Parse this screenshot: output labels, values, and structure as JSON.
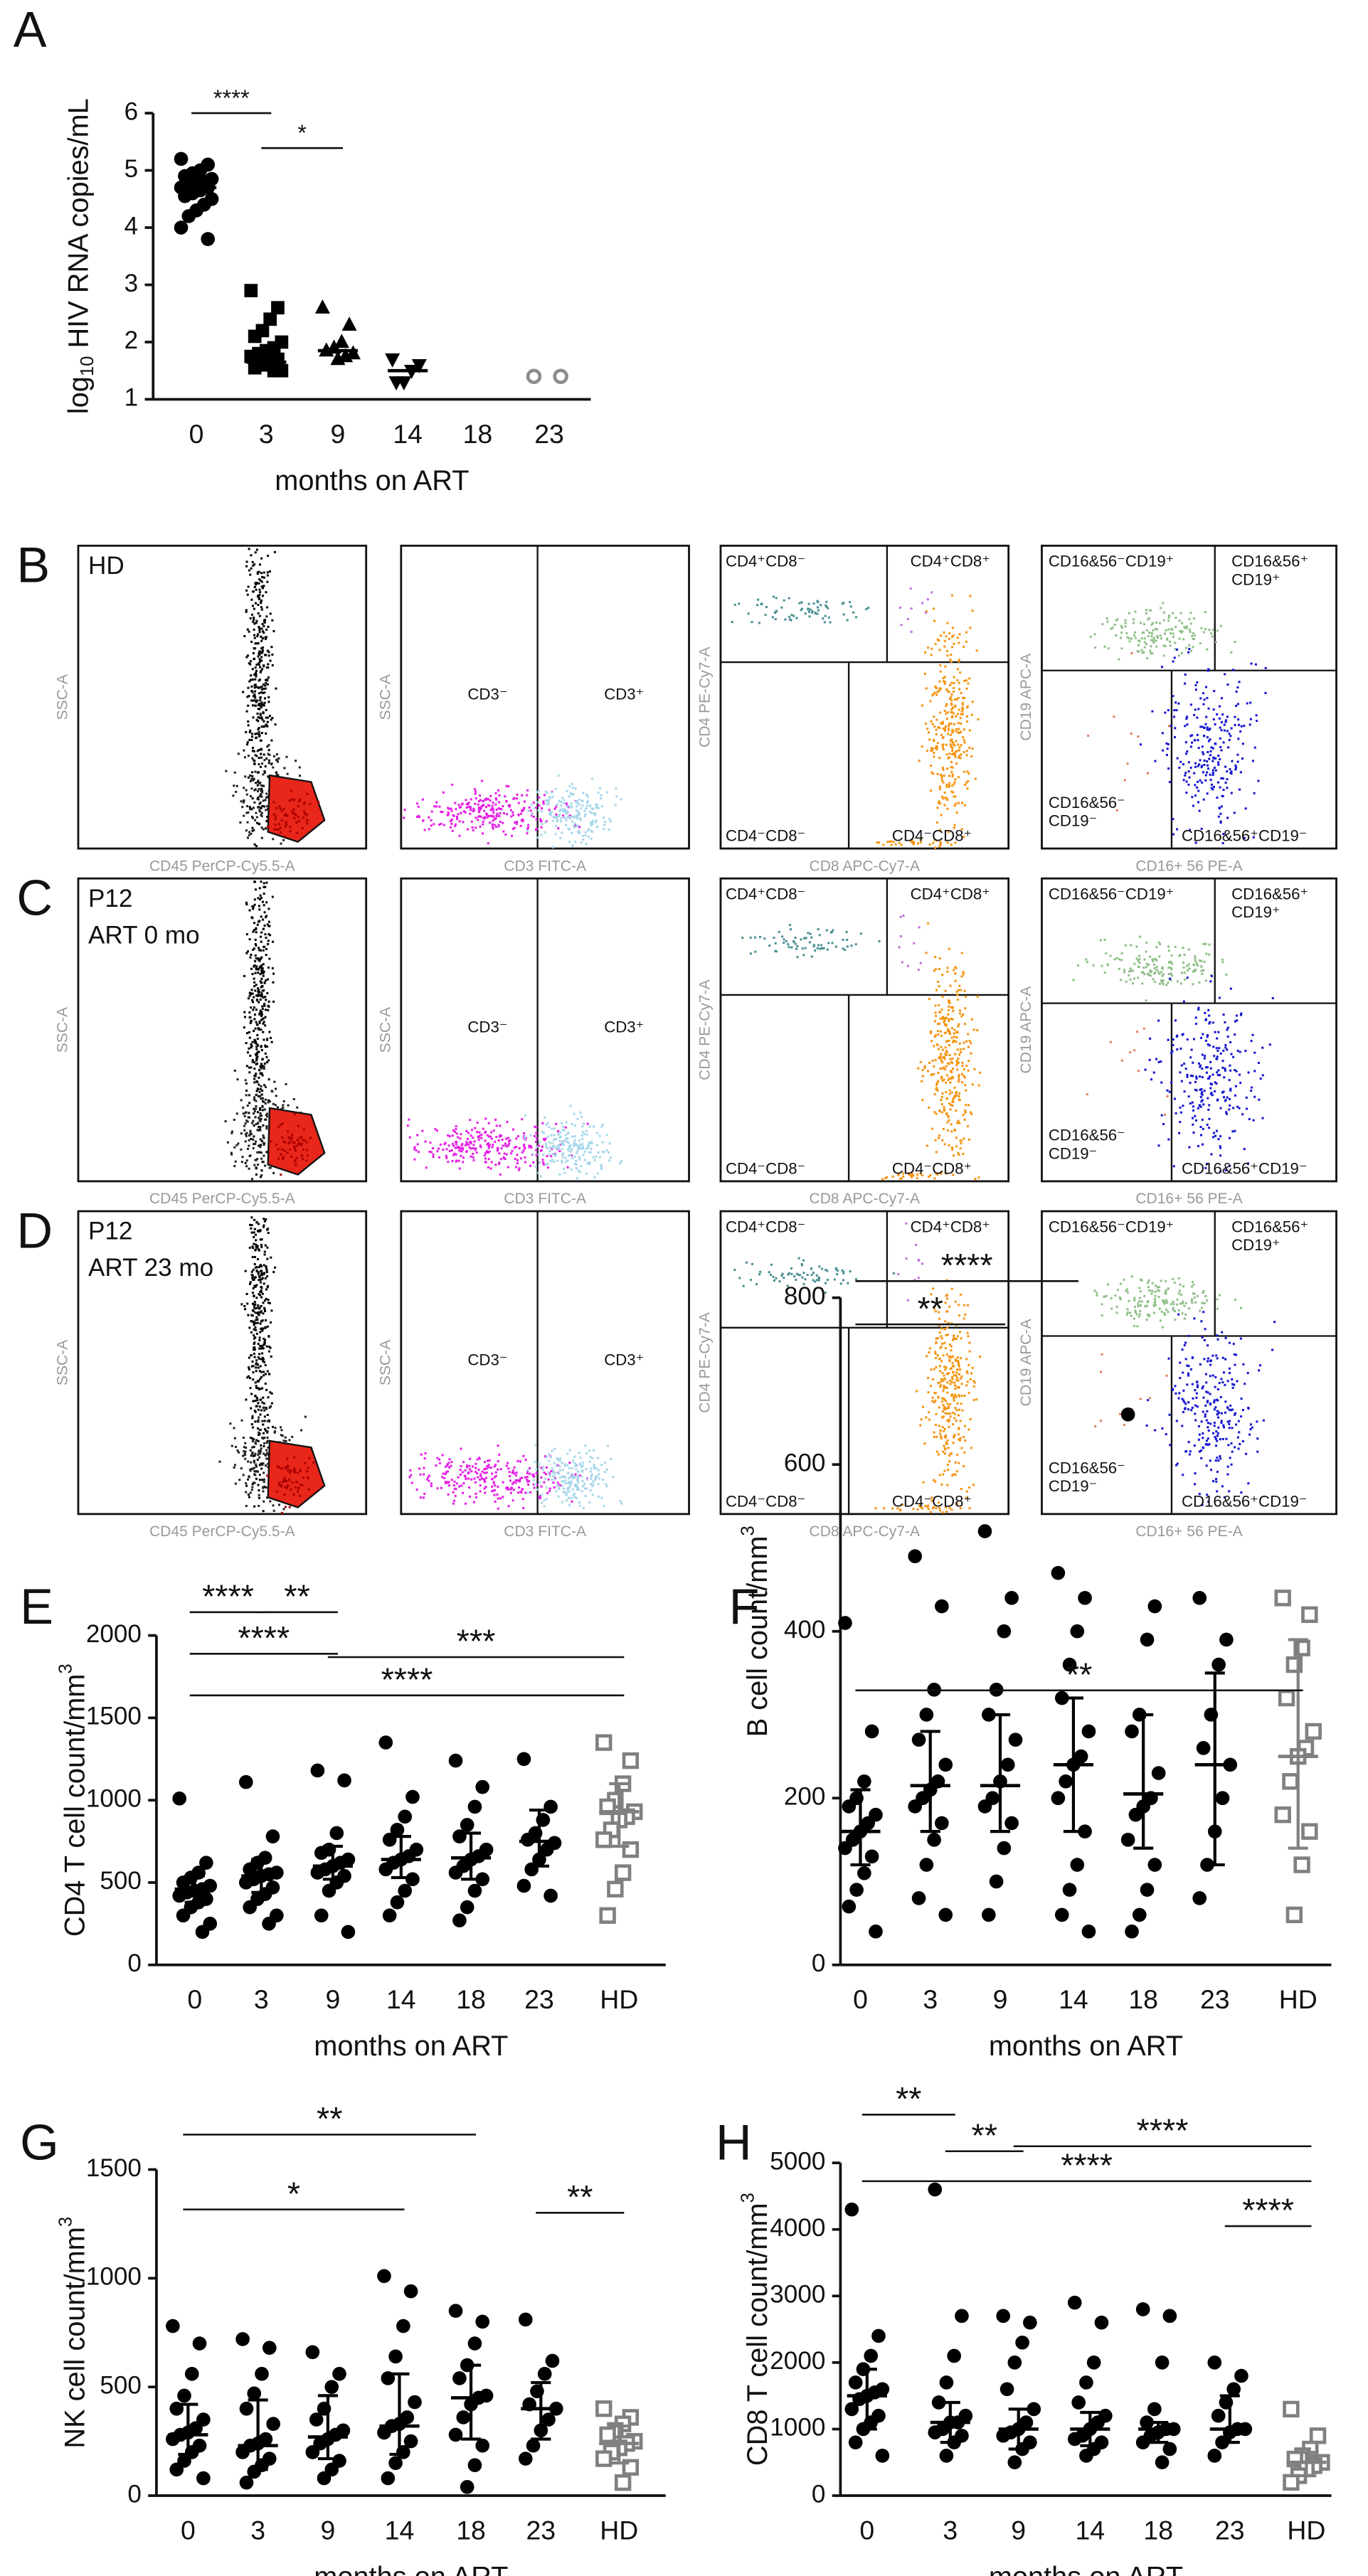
{
  "chart_data": [
    {
      "type": "dot",
      "panel": "A",
      "ylabel": [
        {
          "text": "log"
        },
        {
          "text": "10",
          "shift": "sub"
        },
        {
          "text": " HIV RNA copies/mL"
        }
      ],
      "xlabel": "months on ART",
      "categories": [
        "0",
        "3",
        "9",
        "14",
        "18",
        "23"
      ],
      "markers": [
        "circle",
        "square",
        "triangle",
        "triangle-down",
        "circle",
        "open-circle"
      ],
      "colors": [
        "#000000",
        "#000000",
        "#000000",
        "#000000",
        "#000000",
        "#8c8c8c"
      ],
      "points": [
        [
          5.2,
          5.1,
          5.0,
          4.95,
          4.9,
          4.85,
          4.8,
          4.8,
          4.75,
          4.7,
          4.7,
          4.65,
          4.6,
          4.55,
          4.5,
          4.4,
          4.3,
          4.2,
          4.0,
          3.8
        ],
        [
          2.9,
          2.6,
          2.4,
          2.2,
          2.1,
          2.0,
          1.9,
          1.85,
          1.8,
          1.75,
          1.7,
          1.65,
          1.6,
          1.55,
          1.5,
          1.5
        ],
        [
          2.6,
          2.3,
          2.0,
          1.9,
          1.85,
          1.8,
          1.75,
          1.7
        ],
        [
          1.7,
          1.6,
          1.5,
          1.3,
          1.3
        ],
        [],
        [
          1.4,
          1.4
        ]
      ],
      "medians": [
        4.7,
        1.65,
        1.85,
        1.5,
        null,
        null
      ],
      "ylim": [
        1,
        6
      ],
      "yticks": [
        1,
        2,
        3,
        4,
        5,
        6
      ],
      "annotations": [
        {
          "label": "****",
          "span": [
            "0",
            "3"
          ]
        },
        {
          "label": "*",
          "span": [
            "3",
            "9"
          ]
        }
      ]
    },
    {
      "type": "dot",
      "panel": "E",
      "ylabel": [
        {
          "text": "CD4 T cell count/mm"
        },
        {
          "text": "3",
          "shift": "sup"
        }
      ],
      "xlabel": "months on ART",
      "categories": [
        "0",
        "3",
        "9",
        "14",
        "18",
        "23",
        "HD"
      ],
      "markers": [
        "circle",
        "circle",
        "circle",
        "circle",
        "circle",
        "circle",
        "open-square"
      ],
      "colors": [
        "#000000",
        "#000000",
        "#000000",
        "#000000",
        "#000000",
        "#000000",
        "#808080"
      ],
      "points": [
        [
          1010,
          620,
          560,
          530,
          500,
          480,
          460,
          450,
          440,
          420,
          400,
          380,
          350,
          300,
          250,
          200
        ],
        [
          1110,
          780,
          650,
          620,
          580,
          560,
          550,
          540,
          520,
          500,
          470,
          430,
          400,
          350,
          300,
          250
        ],
        [
          1180,
          1120,
          800,
          700,
          680,
          640,
          620,
          600,
          580,
          560,
          540,
          500,
          450,
          300,
          200
        ],
        [
          1350,
          1020,
          900,
          820,
          760,
          700,
          660,
          640,
          620,
          580,
          520,
          450,
          380,
          300
        ],
        [
          1240,
          1080,
          960,
          850,
          780,
          700,
          660,
          640,
          600,
          560,
          520,
          450,
          350,
          270
        ],
        [
          1250,
          960,
          880,
          800,
          760,
          740,
          700,
          640,
          580,
          480,
          420
        ],
        [
          1350,
          1240,
          1100,
          1000,
          960,
          930,
          900,
          880,
          820,
          760,
          700,
          560,
          460,
          300
        ]
      ],
      "medians": [
        460,
        540,
        600,
        640,
        650,
        750,
        930
      ],
      "q1": [
        380,
        440,
        520,
        530,
        520,
        600,
        720
      ],
      "q3": [
        540,
        640,
        720,
        780,
        800,
        940,
        1100
      ],
      "ylim": [
        0,
        2000
      ],
      "yticks": [
        0,
        500,
        1000,
        1500,
        2000
      ],
      "annotations": [
        {
          "label": "****",
          "span": [
            "0",
            "3"
          ]
        },
        {
          "label": "**",
          "span": [
            "3",
            "9"
          ]
        },
        {
          "label": "****",
          "span": [
            "0",
            "9"
          ]
        },
        {
          "label": "***",
          "span": [
            "9",
            "HD"
          ]
        },
        {
          "label": "****",
          "span": [
            "0",
            "HD"
          ]
        }
      ]
    },
    {
      "type": "dot",
      "panel": "F",
      "ylabel": [
        {
          "text": "B cell count/mm"
        },
        {
          "text": "3",
          "shift": "sup"
        }
      ],
      "xlabel": "months on ART",
      "categories": [
        "0",
        "3",
        "9",
        "14",
        "18",
        "23",
        "HD"
      ],
      "markers": [
        "circle",
        "circle",
        "circle",
        "circle",
        "circle",
        "circle",
        "open-square"
      ],
      "colors": [
        "#000000",
        "#000000",
        "#000000",
        "#000000",
        "#000000",
        "#000000",
        "#808080"
      ],
      "points": [
        [
          410,
          280,
          220,
          200,
          190,
          180,
          170,
          160,
          150,
          140,
          130,
          110,
          90,
          70,
          40
        ],
        [
          490,
          430,
          330,
          300,
          270,
          240,
          220,
          210,
          200,
          190,
          170,
          150,
          120,
          80,
          60
        ],
        [
          520,
          440,
          400,
          330,
          300,
          270,
          240,
          220,
          200,
          190,
          170,
          140,
          100,
          60
        ],
        [
          470,
          440,
          400,
          360,
          320,
          280,
          250,
          240,
          220,
          200,
          160,
          120,
          90,
          60,
          40
        ],
        [
          660,
          430,
          390,
          300,
          280,
          230,
          200,
          190,
          180,
          150,
          120,
          90,
          60,
          40
        ],
        [
          440,
          390,
          360,
          300,
          260,
          240,
          200,
          160,
          120,
          80
        ],
        [
          440,
          420,
          380,
          360,
          320,
          280,
          260,
          250,
          220,
          180,
          160,
          120,
          60
        ]
      ],
      "medians": [
        160,
        215,
        215,
        240,
        205,
        240,
        250
      ],
      "q1": [
        120,
        160,
        160,
        160,
        140,
        120,
        140
      ],
      "q3": [
        210,
        280,
        300,
        320,
        300,
        350,
        390
      ],
      "ylim": [
        0,
        800
      ],
      "yticks": [
        0,
        200,
        400,
        600,
        800
      ],
      "annotations": [
        {
          "label": "****",
          "span": [
            "0",
            "14"
          ]
        },
        {
          "label": "**",
          "span": [
            "0",
            "9"
          ]
        },
        {
          "label": "**",
          "span": [
            "0",
            "HD"
          ]
        }
      ]
    },
    {
      "type": "dot",
      "panel": "G",
      "ylabel": [
        {
          "text": "NK cell count/mm"
        },
        {
          "text": "3",
          "shift": "sup"
        }
      ],
      "xlabel": "months on ART",
      "categories": [
        "0",
        "3",
        "9",
        "14",
        "18",
        "23",
        "HD"
      ],
      "markers": [
        "circle",
        "circle",
        "circle",
        "circle",
        "circle",
        "circle",
        "open-square"
      ],
      "colors": [
        "#000000",
        "#000000",
        "#000000",
        "#000000",
        "#000000",
        "#000000",
        "#808080"
      ],
      "points": [
        [
          780,
          700,
          560,
          460,
          400,
          350,
          310,
          290,
          280,
          260,
          230,
          200,
          160,
          120,
          80
        ],
        [
          720,
          680,
          560,
          470,
          400,
          330,
          260,
          240,
          230,
          200,
          170,
          140,
          110,
          60
        ],
        [
          660,
          560,
          500,
          400,
          350,
          300,
          280,
          260,
          240,
          200,
          160,
          120,
          80
        ],
        [
          1010,
          940,
          780,
          640,
          540,
          430,
          360,
          330,
          320,
          290,
          250,
          200,
          150,
          80
        ],
        [
          850,
          800,
          700,
          600,
          540,
          460,
          450,
          420,
          360,
          280,
          230,
          140,
          40
        ],
        [
          810,
          620,
          560,
          480,
          420,
          400,
          350,
          300,
          230,
          170
        ],
        [
          400,
          360,
          330,
          300,
          280,
          250,
          240,
          220,
          200,
          170,
          130,
          60
        ]
      ],
      "medians": [
        280,
        230,
        270,
        320,
        450,
        400,
        240
      ],
      "q1": [
        190,
        120,
        170,
        190,
        260,
        260,
        150
      ],
      "q3": [
        420,
        440,
        460,
        560,
        600,
        520,
        320
      ],
      "ylim": [
        0,
        1500
      ],
      "yticks": [
        0,
        500,
        1000,
        1500
      ],
      "annotations": [
        {
          "label": "**",
          "span": [
            "0",
            "18"
          ]
        },
        {
          "label": "*",
          "span": [
            "0",
            "14"
          ]
        },
        {
          "label": "**",
          "span": [
            "23",
            "HD"
          ]
        }
      ]
    },
    {
      "type": "dot",
      "panel": "H",
      "ylabel": [
        {
          "text": "CD8 T cell count/mm"
        },
        {
          "text": "3",
          "shift": "sup"
        }
      ],
      "xlabel": "months on ART",
      "categories": [
        "0",
        "3",
        "9",
        "14",
        "18",
        "23",
        "HD"
      ],
      "markers": [
        "circle",
        "circle",
        "circle",
        "circle",
        "circle",
        "circle",
        "open-square"
      ],
      "colors": [
        "#000000",
        "#000000",
        "#000000",
        "#000000",
        "#000000",
        "#000000",
        "#808080"
      ],
      "points": [
        [
          4300,
          2400,
          2100,
          1900,
          1700,
          1600,
          1550,
          1500,
          1450,
          1300,
          1200,
          1100,
          1000,
          800,
          600
        ],
        [
          4600,
          2700,
          2100,
          1700,
          1400,
          1200,
          1100,
          1100,
          1000,
          950,
          900,
          800,
          600
        ],
        [
          2700,
          2600,
          2300,
          2000,
          1600,
          1300,
          1100,
          1000,
          950,
          900,
          800,
          700,
          500
        ],
        [
          2900,
          2600,
          2000,
          1700,
          1400,
          1200,
          1100,
          1000,
          900,
          850,
          800,
          700,
          600
        ],
        [
          2800,
          2700,
          2000,
          1300,
          1100,
          1000,
          1000,
          950,
          900,
          800,
          700,
          500
        ],
        [
          2000,
          1800,
          1600,
          1400,
          1200,
          1000,
          1000,
          950,
          800,
          600
        ],
        [
          1300,
          900,
          700,
          600,
          550,
          500,
          450,
          400,
          300,
          200
        ]
      ],
      "medians": [
        1500,
        1100,
        1000,
        1000,
        1000,
        1000,
        500
      ],
      "q1": [
        1000,
        800,
        700,
        750,
        800,
        800,
        300
      ],
      "q3": [
        1900,
        1400,
        1300,
        1250,
        1100,
        1500,
        650
      ],
      "ylim": [
        0,
        5000
      ],
      "yticks": [
        0,
        1000,
        2000,
        3000,
        4000,
        5000
      ],
      "annotations": [
        {
          "label": "**",
          "span": [
            "0",
            "3"
          ]
        },
        {
          "label": "**",
          "span": [
            "3",
            "9"
          ]
        },
        {
          "label": "****",
          "span": [
            "9",
            "HD"
          ]
        },
        {
          "label": "****",
          "span": [
            "0",
            "HD"
          ]
        },
        {
          "label": "****",
          "span": [
            "23",
            "HD"
          ]
        }
      ]
    }
  ],
  "flow_panels": [
    {
      "panel": "B",
      "sample": [
        "HD"
      ]
    },
    {
      "panel": "C",
      "sample": [
        "P12",
        "ART 0 mo"
      ]
    },
    {
      "panel": "D",
      "sample": [
        "P12",
        "ART 23 mo"
      ]
    }
  ],
  "flow_plots": [
    {
      "xlabel": "CD45 PerCP-Cy5.5-A",
      "ylabel": "SSC-A",
      "gates": []
    },
    {
      "xlabel": "CD3 FITC-A",
      "ylabel": "SSC-A",
      "gates": [
        [
          "CD3⁻"
        ],
        [
          "CD3⁺"
        ]
      ]
    },
    {
      "xlabel": "CD8 APC-Cy7-A",
      "ylabel": "CD4 PE-Cy7-A",
      "gates": [
        [
          "CD4⁺CD8⁻"
        ],
        [
          "CD4⁺CD8⁺"
        ],
        [
          "CD4⁻CD8⁻"
        ],
        [
          "CD4⁻CD8⁺"
        ]
      ]
    },
    {
      "xlabel": "CD16+ 56 PE-A",
      "ylabel": "CD19 APC-A",
      "gates": [
        [
          "CD16&56⁻CD19⁺"
        ],
        [
          "CD16&56⁺",
          "CD19⁺"
        ],
        [
          "CD16&56⁻",
          "CD19⁻"
        ],
        [
          "CD16&56⁺CD19⁻"
        ]
      ]
    }
  ]
}
